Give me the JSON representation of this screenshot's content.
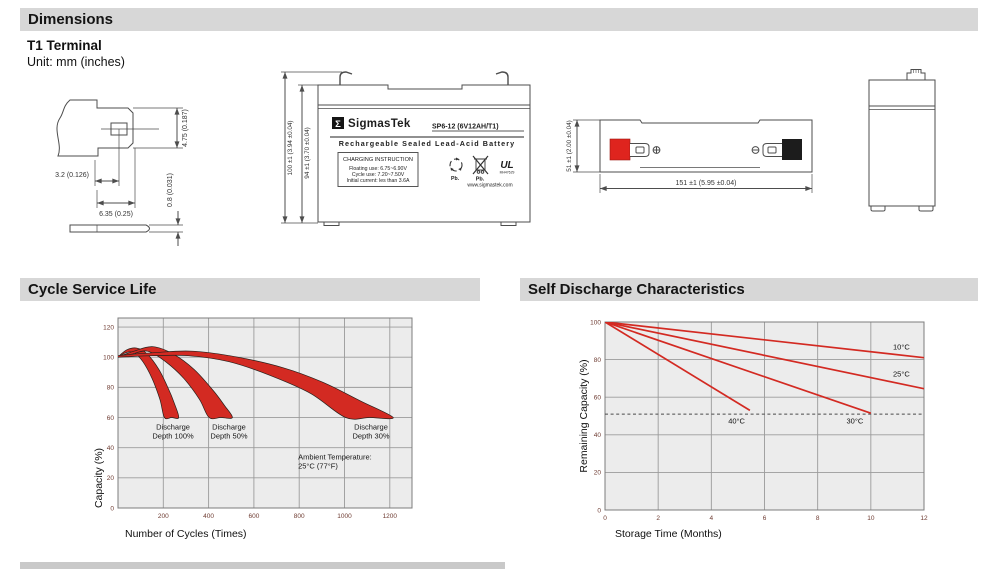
{
  "page": {
    "header": "Dimensions",
    "terminal_type": "T1 Terminal",
    "unit_note": "Unit: mm (inches)"
  },
  "drawings": {
    "terminal": {
      "width_small": "3.2 (0.126)",
      "width_large": "6.35 (0.25)",
      "height": "4.75 (0.187)",
      "thickness": "0.8 (0.031)"
    },
    "front": {
      "height_outer": "100 ±1 (3.94 ±0.04)",
      "height_inner": "94 ±1 (3.70 ±0.04)"
    },
    "top": {
      "depth": "51 ±1 (2.00 ±0.04)",
      "width": "151 ±1 (5.95 ±0.04)"
    }
  },
  "battery_label": {
    "sigma": "Σ",
    "brand": "SigmasTek",
    "model": "SP6-12 (6V12AH/T1)",
    "type_line": "Rechargeable Sealed Lead-Acid Battery",
    "charging_title": "CHARGING INSTRUCTION",
    "charging_lines": [
      "Floating use: 6.75~6.90V",
      "Cycle use: 7.20~7.50V",
      "Initial current: les than 3.6A"
    ],
    "pb_recycle": "Pb.",
    "pb_bin": "Pb.",
    "ul_text": "UL",
    "ul_code": "MH47629",
    "website": "www.sigmastek.com"
  },
  "icons": {
    "positive_terminal": "⊕",
    "negative_terminal": "⊖",
    "recycle": "recycle-arrows",
    "crossed_bin": "crossed-out-bin"
  },
  "chart_data": [
    {
      "type": "area",
      "title": "Cycle Service Life",
      "xlabel": "Number of Cycles (Times)",
      "ylabel": "Capacity (%)",
      "xlim": [
        0,
        1298
      ],
      "ylim": [
        0,
        126
      ],
      "x_ticks": [
        200,
        400,
        600,
        800,
        1000,
        1200
      ],
      "y_ticks": [
        0,
        20,
        40,
        60,
        80,
        100,
        120
      ],
      "grid": true,
      "band_color": "#d32a22",
      "bands": [
        {
          "name": "Discharge Depth 100%",
          "upper": [
            [
              0,
              100
            ],
            [
              40,
              105
            ],
            [
              85,
              106
            ],
            [
              130,
              102
            ],
            [
              180,
              92
            ],
            [
              220,
              80
            ],
            [
              250,
              69
            ],
            [
              268,
              60
            ]
          ],
          "lower": [
            [
              0,
              100
            ],
            [
              35,
              103
            ],
            [
              70,
              103
            ],
            [
              110,
              97
            ],
            [
              150,
              86
            ],
            [
              185,
              72
            ],
            [
              205,
              60
            ]
          ]
        },
        {
          "name": "Discharge Depth 50%",
          "upper": [
            [
              0,
              100
            ],
            [
              70,
              104
            ],
            [
              155,
              107
            ],
            [
              245,
              102
            ],
            [
              335,
              92
            ],
            [
              420,
              78
            ],
            [
              470,
              68
            ],
            [
              505,
              60
            ]
          ],
          "lower": [
            [
              0,
              100
            ],
            [
              60,
              102
            ],
            [
              130,
              104
            ],
            [
              210,
              97
            ],
            [
              290,
              86
            ],
            [
              360,
              72
            ],
            [
              402,
              60
            ]
          ]
        },
        {
          "name": "Discharge Depth 30%",
          "upper": [
            [
              0,
              101
            ],
            [
              160,
              103
            ],
            [
              330,
              104
            ],
            [
              530,
              100
            ],
            [
              730,
              93
            ],
            [
              910,
              83
            ],
            [
              1070,
              71
            ],
            [
              1215,
              60
            ]
          ],
          "lower": [
            [
              0,
              100
            ],
            [
              150,
              101
            ],
            [
              310,
              101
            ],
            [
              490,
              97
            ],
            [
              670,
              88
            ],
            [
              850,
              76
            ],
            [
              1005,
              60
            ]
          ]
        }
      ],
      "annotations": [
        {
          "lines": [
            "Discharge",
            "Depth 100%"
          ],
          "x": 243,
          "y": 52,
          "anchor": "middle"
        },
        {
          "lines": [
            "Discharge",
            "Depth 50%"
          ],
          "x": 490,
          "y": 52,
          "anchor": "middle"
        },
        {
          "lines": [
            "Discharge",
            "Depth 30%"
          ],
          "x": 1117,
          "y": 52,
          "anchor": "middle"
        },
        {
          "lines": [
            "Ambient Temperature:",
            "25°C (77°F)"
          ],
          "x": 795,
          "y": 32,
          "anchor": "start"
        }
      ]
    },
    {
      "type": "line",
      "title": "Self Discharge Characteristics",
      "xlabel": "Storage Time (Months)",
      "ylabel": "Remaining Capacity (%)",
      "xlim": [
        0,
        12
      ],
      "ylim": [
        0,
        100
      ],
      "x_ticks": [
        0,
        2,
        4,
        6,
        8,
        10,
        12
      ],
      "y_ticks": [
        0,
        20,
        40,
        60,
        80,
        100
      ],
      "grid": true,
      "line_color": "#d32a22",
      "dashed_guide_y": 51,
      "series": [
        {
          "name": "10°C",
          "points": [
            [
              0,
              100
            ],
            [
              12,
              81
            ]
          ],
          "label_x": 11.15,
          "label_y": 85.5
        },
        {
          "name": "25°C",
          "points": [
            [
              0,
              100
            ],
            [
              12,
              64.5
            ]
          ],
          "label_x": 11.15,
          "label_y": 71
        },
        {
          "name": "30°C",
          "points": [
            [
              0,
              100
            ],
            [
              10,
              51.5
            ]
          ],
          "label_x": 9.4,
          "label_y": 46
        },
        {
          "name": "40°C",
          "points": [
            [
              0,
              100
            ],
            [
              5.45,
              53
            ]
          ],
          "label_x": 4.95,
          "label_y": 46
        }
      ]
    }
  ]
}
